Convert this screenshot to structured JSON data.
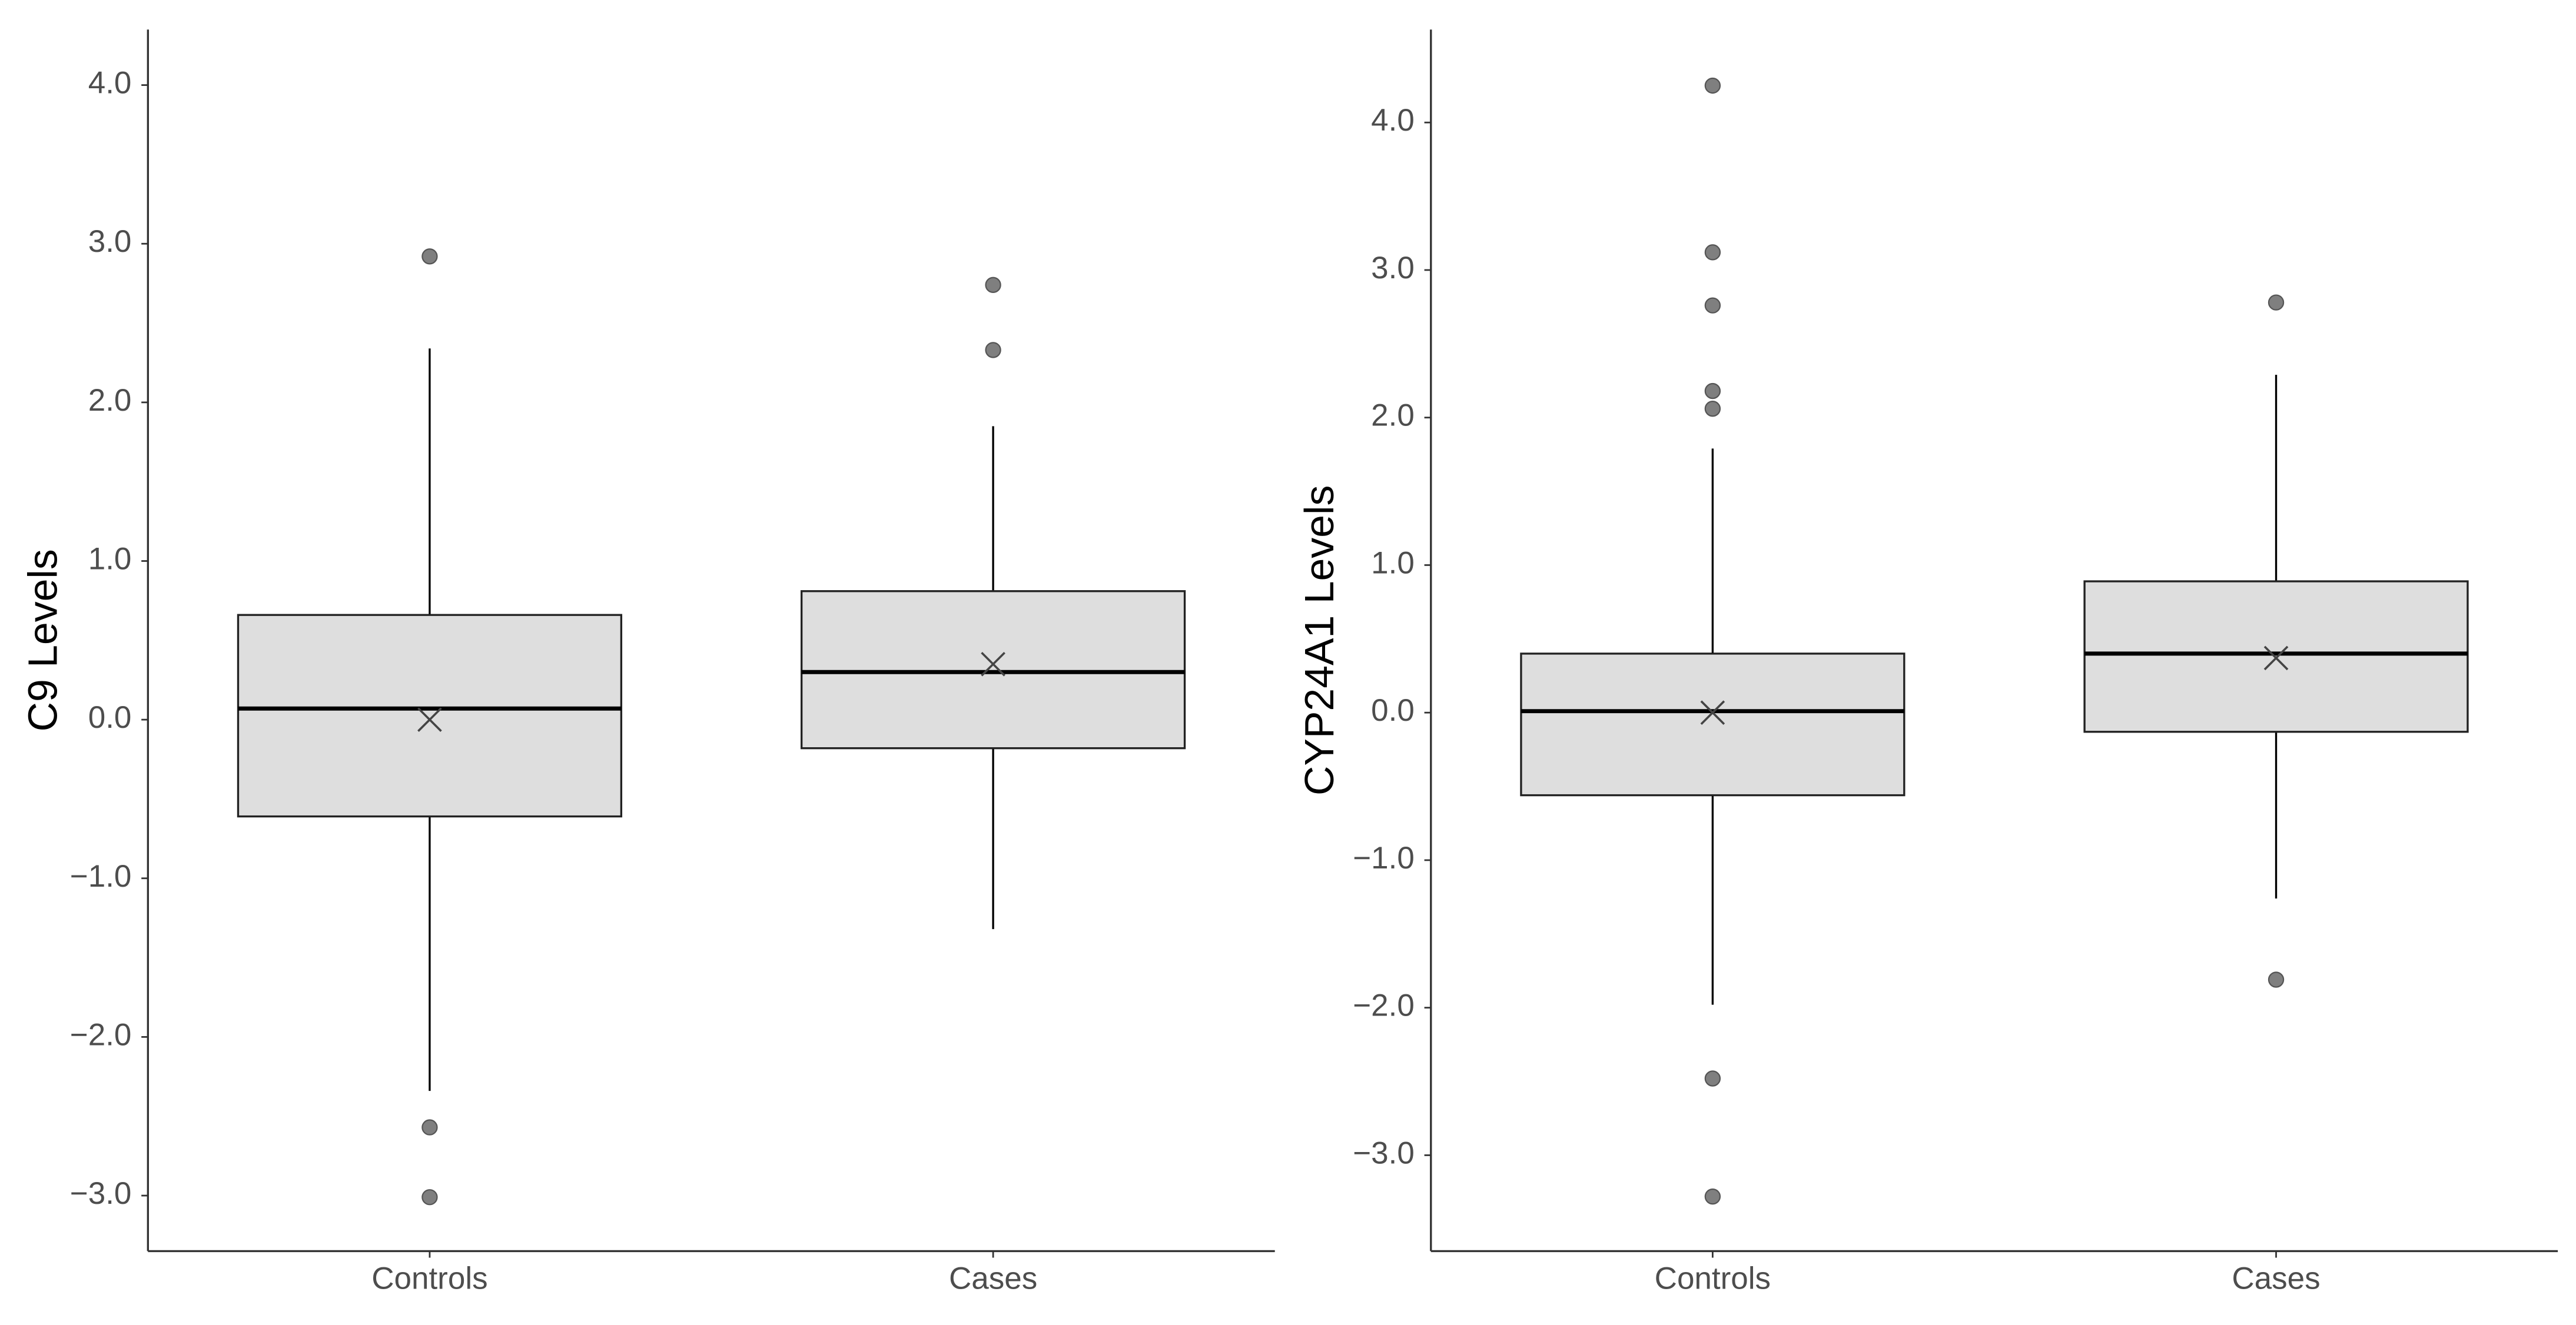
{
  "chart_data": [
    {
      "type": "box",
      "y_label": "C9 Levels",
      "categories": [
        "Controls",
        "Cases"
      ],
      "fill": "#dedede",
      "outlier_color": "#7f7f7f",
      "ylim": [
        -3.35,
        4.35
      ],
      "yticks": [
        {
          "value": 4,
          "label": "4.0"
        },
        {
          "value": 3,
          "label": "3.0"
        },
        {
          "value": 2,
          "label": "2.0"
        },
        {
          "value": 1,
          "label": "1.0"
        },
        {
          "value": 0,
          "label": "0.0"
        },
        {
          "value": -1,
          "label": "−1.0"
        },
        {
          "value": -2,
          "label": "−2.0"
        },
        {
          "value": -3,
          "label": "−3.0"
        }
      ],
      "boxes": [
        {
          "whisker_low": -2.34,
          "q1": -0.61,
          "median": 0.07,
          "q3": 0.66,
          "whisker_high": 2.34,
          "mean": 0.0,
          "outliers": [
            2.92,
            -2.57,
            -3.01
          ]
        },
        {
          "whisker_low": -1.32,
          "q1": -0.18,
          "median": 0.3,
          "q3": 0.81,
          "whisker_high": 1.85,
          "mean": 0.35,
          "outliers": [
            2.74,
            2.33
          ]
        }
      ]
    },
    {
      "type": "box",
      "y_label": "CYP24A1 Levels",
      "categories": [
        "Controls",
        "Cases"
      ],
      "fill": "#dedede",
      "outlier_color": "#7f7f7f",
      "ylim": [
        -3.65,
        4.63
      ],
      "yticks": [
        {
          "value": 4,
          "label": "4.0"
        },
        {
          "value": 3,
          "label": "3.0"
        },
        {
          "value": 2,
          "label": "2.0"
        },
        {
          "value": 1,
          "label": "1.0"
        },
        {
          "value": 0,
          "label": "0.0"
        },
        {
          "value": -1,
          "label": "−1.0"
        },
        {
          "value": -2,
          "label": "−2.0"
        },
        {
          "value": -3,
          "label": "−3.0"
        }
      ],
      "boxes": [
        {
          "whisker_low": -1.98,
          "q1": -0.56,
          "median": 0.01,
          "q3": 0.4,
          "whisker_high": 1.79,
          "mean": 0.0,
          "outliers": [
            4.25,
            3.12,
            2.76,
            2.18,
            2.06,
            -2.48,
            -3.28
          ]
        },
        {
          "whisker_low": -1.26,
          "q1": -0.13,
          "median": 0.4,
          "q3": 0.89,
          "whisker_high": 2.29,
          "mean": 0.37,
          "outliers": [
            2.78,
            -1.81
          ]
        }
      ]
    }
  ]
}
